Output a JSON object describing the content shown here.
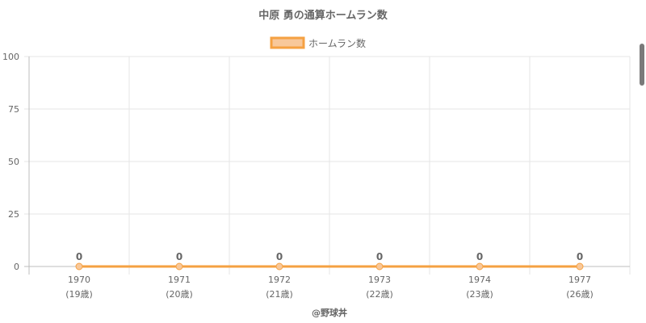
{
  "chart_data": {
    "type": "line",
    "title": "中原 勇の通算ホームラン数",
    "categories": [
      "1970",
      "1971",
      "1972",
      "1973",
      "1974",
      "1977"
    ],
    "sublabels": [
      "(19歳)",
      "(20歳)",
      "(21歳)",
      "(22歳)",
      "(23歳)",
      "(26歳)"
    ],
    "series": [
      {
        "name": "ホームラン数",
        "values": [
          0,
          0,
          0,
          0,
          0,
          0
        ],
        "color": "#F5A142",
        "fill": "#F8C89A"
      }
    ],
    "data_labels": [
      "0",
      "0",
      "0",
      "0",
      "0",
      "0"
    ],
    "yticks": [
      "0",
      "25",
      "50",
      "75",
      "100"
    ],
    "ylim": [
      0,
      100
    ],
    "grid": true,
    "legend_position": "top"
  },
  "footer": {
    "credit": "@野球丼"
  },
  "colors": {
    "grid": "#e6e6e6",
    "axis": "#bdbdbd",
    "text": "#666666"
  }
}
